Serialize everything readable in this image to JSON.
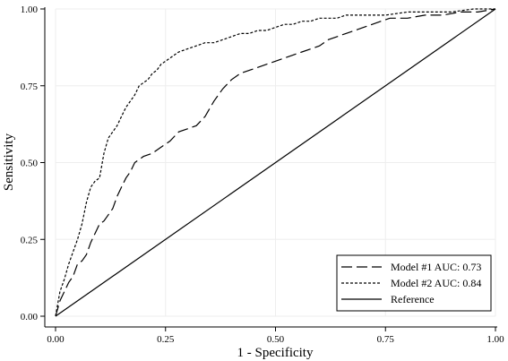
{
  "chart_data": {
    "type": "line",
    "xlabel": "1 - Specificity",
    "ylabel": "Sensitivity",
    "xlim": [
      0,
      1
    ],
    "ylim": [
      0,
      1
    ],
    "xticks": [
      "0.00",
      "0.25",
      "0.50",
      "0.75",
      "1.00"
    ],
    "yticks": [
      "0.00",
      "0.25",
      "0.50",
      "0.75",
      "1.00"
    ],
    "grid": true,
    "legend_position": "bottom-right",
    "series": [
      {
        "name": "Model #1 AUC: 0.73",
        "style": "long-dash",
        "x": [
          0,
          0.01,
          0.02,
          0.03,
          0.04,
          0.05,
          0.06,
          0.07,
          0.08,
          0.09,
          0.1,
          0.11,
          0.12,
          0.13,
          0.14,
          0.15,
          0.16,
          0.17,
          0.18,
          0.19,
          0.2,
          0.22,
          0.24,
          0.26,
          0.28,
          0.3,
          0.32,
          0.34,
          0.36,
          0.38,
          0.4,
          0.42,
          0.44,
          0.46,
          0.48,
          0.5,
          0.52,
          0.54,
          0.56,
          0.58,
          0.6,
          0.62,
          0.64,
          0.66,
          0.68,
          0.7,
          0.72,
          0.74,
          0.76,
          0.8,
          0.84,
          0.88,
          0.92,
          0.96,
          1.0
        ],
        "y": [
          0,
          0.05,
          0.08,
          0.11,
          0.13,
          0.17,
          0.18,
          0.2,
          0.24,
          0.27,
          0.3,
          0.31,
          0.33,
          0.35,
          0.39,
          0.42,
          0.45,
          0.47,
          0.5,
          0.51,
          0.52,
          0.53,
          0.55,
          0.57,
          0.6,
          0.61,
          0.62,
          0.65,
          0.7,
          0.74,
          0.77,
          0.79,
          0.8,
          0.81,
          0.82,
          0.83,
          0.84,
          0.85,
          0.86,
          0.87,
          0.88,
          0.9,
          0.91,
          0.92,
          0.93,
          0.94,
          0.95,
          0.96,
          0.97,
          0.97,
          0.98,
          0.98,
          0.99,
          0.99,
          1.0
        ]
      },
      {
        "name": "Model #2 AUC: 0.84",
        "style": "short-dash",
        "x": [
          0,
          0.01,
          0.02,
          0.03,
          0.04,
          0.05,
          0.06,
          0.07,
          0.08,
          0.09,
          0.1,
          0.11,
          0.12,
          0.13,
          0.14,
          0.15,
          0.16,
          0.17,
          0.18,
          0.19,
          0.2,
          0.21,
          0.22,
          0.23,
          0.24,
          0.25,
          0.26,
          0.27,
          0.28,
          0.3,
          0.32,
          0.34,
          0.36,
          0.38,
          0.4,
          0.42,
          0.44,
          0.46,
          0.48,
          0.5,
          0.52,
          0.54,
          0.56,
          0.58,
          0.6,
          0.62,
          0.64,
          0.66,
          0.68,
          0.7,
          0.75,
          0.8,
          0.85,
          0.9,
          0.95,
          1.0
        ],
        "y": [
          0,
          0.08,
          0.12,
          0.17,
          0.21,
          0.25,
          0.3,
          0.37,
          0.42,
          0.44,
          0.45,
          0.53,
          0.58,
          0.6,
          0.62,
          0.65,
          0.68,
          0.7,
          0.72,
          0.75,
          0.76,
          0.77,
          0.79,
          0.8,
          0.82,
          0.83,
          0.84,
          0.85,
          0.86,
          0.87,
          0.88,
          0.89,
          0.89,
          0.9,
          0.91,
          0.92,
          0.92,
          0.93,
          0.93,
          0.94,
          0.95,
          0.95,
          0.96,
          0.96,
          0.97,
          0.97,
          0.97,
          0.98,
          0.98,
          0.98,
          0.98,
          0.99,
          0.99,
          0.99,
          1.0,
          1.0
        ]
      },
      {
        "name": "Reference",
        "style": "solid",
        "x": [
          0,
          1
        ],
        "y": [
          0,
          1
        ]
      }
    ]
  }
}
